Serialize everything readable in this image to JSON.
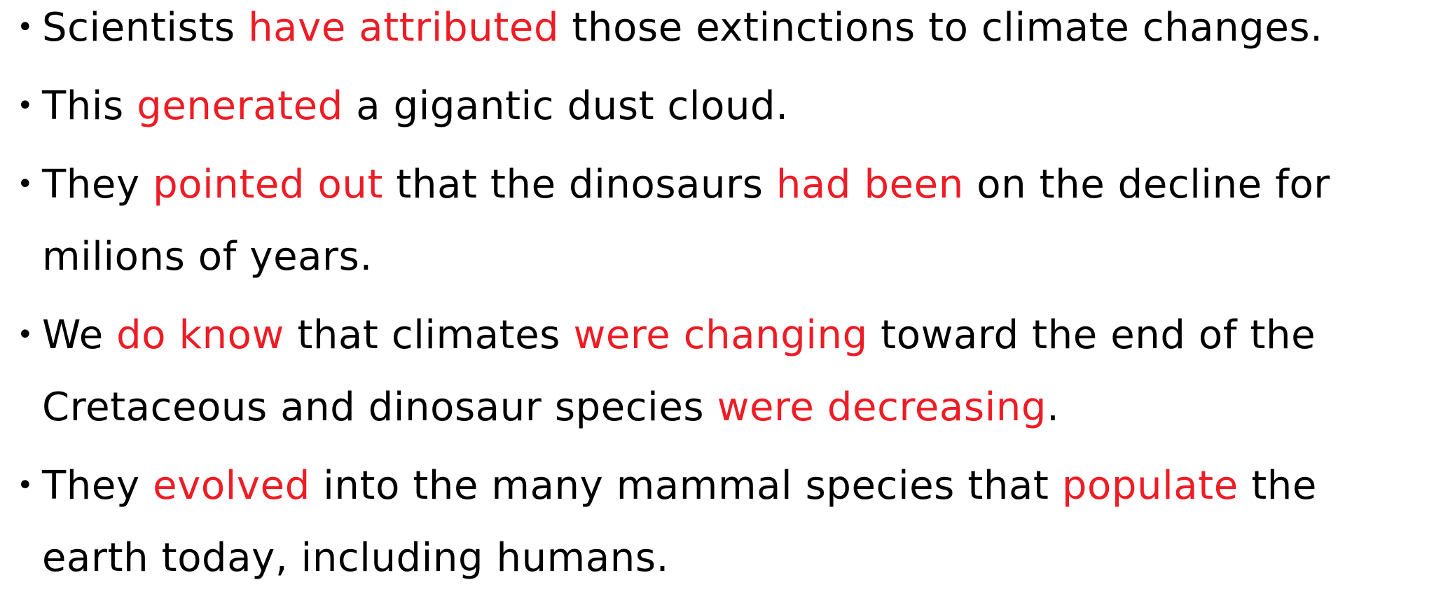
{
  "emphasis_color": "#ee1c25",
  "bullets": [
    {
      "segments": [
        {
          "text": "Scientists "
        },
        {
          "text": "have attributed",
          "emphasis": true
        },
        {
          "text": " those extinctions to climate changes."
        }
      ]
    },
    {
      "segments": [
        {
          "text": "This "
        },
        {
          "text": "generated",
          "emphasis": true
        },
        {
          "text": " a gigantic dust cloud."
        }
      ]
    },
    {
      "segments": [
        {
          "text": "They "
        },
        {
          "text": "pointed out",
          "emphasis": true
        },
        {
          "text": " that the dinosaurs "
        },
        {
          "text": "had been",
          "emphasis": true
        },
        {
          "text": " on the decline for milions of years."
        }
      ]
    },
    {
      "segments": [
        {
          "text": "We "
        },
        {
          "text": "do know",
          "emphasis": true
        },
        {
          "text": " that climates "
        },
        {
          "text": "were changing",
          "emphasis": true
        },
        {
          "text": " toward the end of the Cretaceous and dinosaur species "
        },
        {
          "text": "were decreasing",
          "emphasis": true
        },
        {
          "text": "."
        }
      ]
    },
    {
      "segments": [
        {
          "text": "They "
        },
        {
          "text": "evolved",
          "emphasis": true
        },
        {
          "text": " into the many mammal species that "
        },
        {
          "text": "populate",
          "emphasis": true
        },
        {
          "text": " the earth today, including humans."
        }
      ]
    }
  ]
}
